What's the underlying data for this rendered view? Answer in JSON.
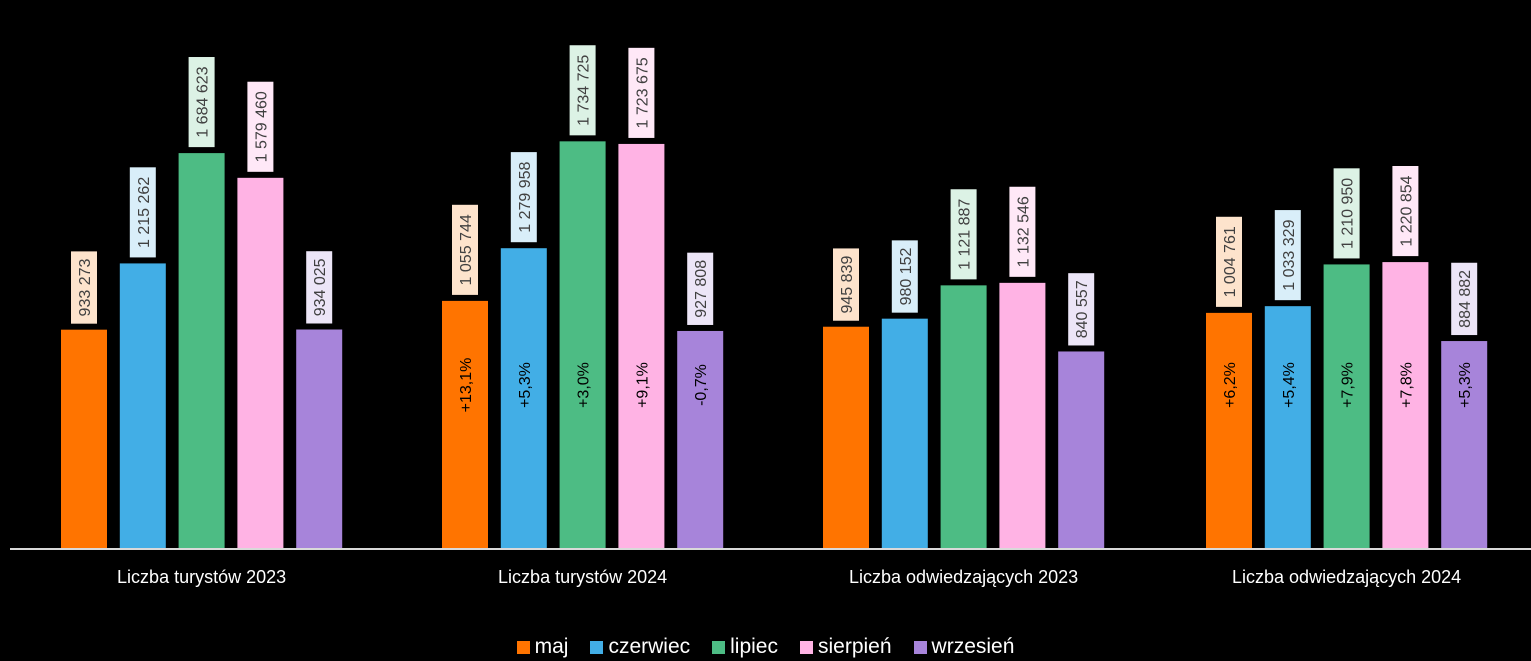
{
  "chart_data": {
    "type": "bar",
    "categories": [
      "Liczba turystów 2023",
      "Liczba turystów 2024",
      "Liczba odwiedzających 2023",
      "Liczba odwiedzających 2024"
    ],
    "series": [
      {
        "name": "maj",
        "color": "#FF7400",
        "values": [
          933273,
          1055744,
          945839,
          1004761
        ],
        "value_labels": [
          "933 273",
          "1 055 744",
          "945 839",
          "1 004 761"
        ],
        "label_bg": "#FDE3CC",
        "changes": [
          "",
          "+13,1%",
          "",
          "+6,2%"
        ]
      },
      {
        "name": "czerwiec",
        "color": "#42AEE6",
        "values": [
          1215262,
          1279958,
          980152,
          1033329
        ],
        "value_labels": [
          "1 215 262",
          "1 279 958",
          "980 152",
          "1 033 329"
        ],
        "label_bg": "#D9EEF9",
        "changes": [
          "",
          "+5,3%",
          "",
          "+5,4%"
        ]
      },
      {
        "name": "lipiec",
        "color": "#4DBC84",
        "values": [
          1684623,
          1734725,
          1121887,
          1210950
        ],
        "value_labels": [
          "1 684 623",
          "1 734 725",
          "1 121 887",
          "1 210 950"
        ],
        "label_bg": "#DCF2E5",
        "changes": [
          "",
          "+3,0%",
          "",
          "+7,9%"
        ]
      },
      {
        "name": "sierpień",
        "color": "#FFB3E4",
        "values": [
          1579460,
          1723675,
          1132546,
          1220854
        ],
        "value_labels": [
          "1 579 460",
          "1 723 675",
          "1 132 546",
          "1 220 854"
        ],
        "label_bg": "#FFE8F7",
        "changes": [
          "",
          "+9,1%",
          "",
          "+7,8%"
        ]
      },
      {
        "name": "wrzesień",
        "color": "#A784DA",
        "values": [
          934025,
          927808,
          840557,
          884882
        ],
        "value_labels": [
          "934 025",
          "927 808",
          "840 557",
          "884 882"
        ],
        "label_bg": "#ECE5F7",
        "changes": [
          "",
          "-0,7%",
          "",
          "+5,3%"
        ]
      }
    ],
    "ylim": [
      0,
      1900000
    ],
    "grid": false,
    "legend_position": "bottom"
  }
}
